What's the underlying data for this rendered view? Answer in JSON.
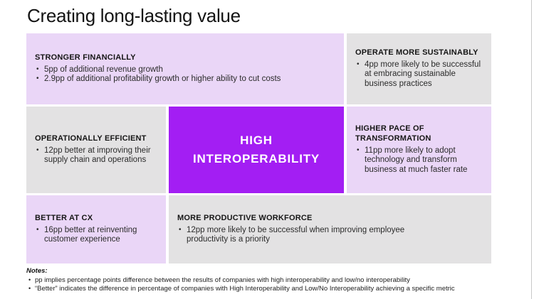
{
  "slide": {
    "title": "Creating long-lasting value"
  },
  "colors": {
    "accent_purple": "#A31EF3",
    "lavender_box": "#EAD6F7",
    "gray_box": "#E3E2E3",
    "center_text": "#FFFFFF"
  },
  "center": {
    "line1": "HIGH",
    "line2": "INTEROPERABILITY"
  },
  "boxes": {
    "stronger_financially": {
      "heading": "STRONGER FINANCIALLY",
      "bullets": [
        "5pp of additional revenue growth",
        "2.9pp of additional profitability growth or higher ability to cut costs"
      ]
    },
    "operate_sustainably": {
      "heading": "OPERATE MORE SUSTAINABLY",
      "bullets": [
        "4pp more likely to be successful at embracing sustainable business practices"
      ]
    },
    "operationally_efficient": {
      "heading": "OPERATIONALLY EFFICIENT",
      "bullets": [
        "12pp better at improving their supply chain and operations"
      ]
    },
    "higher_pace": {
      "heading": "HIGHER PACE OF TRANSFORMATION",
      "bullets": [
        "11pp more likely to adopt technology and transform business at much faster rate"
      ]
    },
    "better_cx": {
      "heading": "BETTER AT CX",
      "bullets": [
        "16pp better at reinventing customer experience"
      ]
    },
    "productive_workforce": {
      "heading": "MORE PRODUCTIVE WORKFORCE",
      "bullets": [
        "12pp more likely to be successful when improving employee productivity is a priority"
      ]
    }
  },
  "notes": {
    "label": "Notes:",
    "items": [
      "pp implies percentage points difference between the results of companies with high interoperability and low/no interoperability",
      "“Better” indicates the difference in percentage of companies with High Interoperability and Low/No Interoperability achieving a specific metric"
    ]
  }
}
